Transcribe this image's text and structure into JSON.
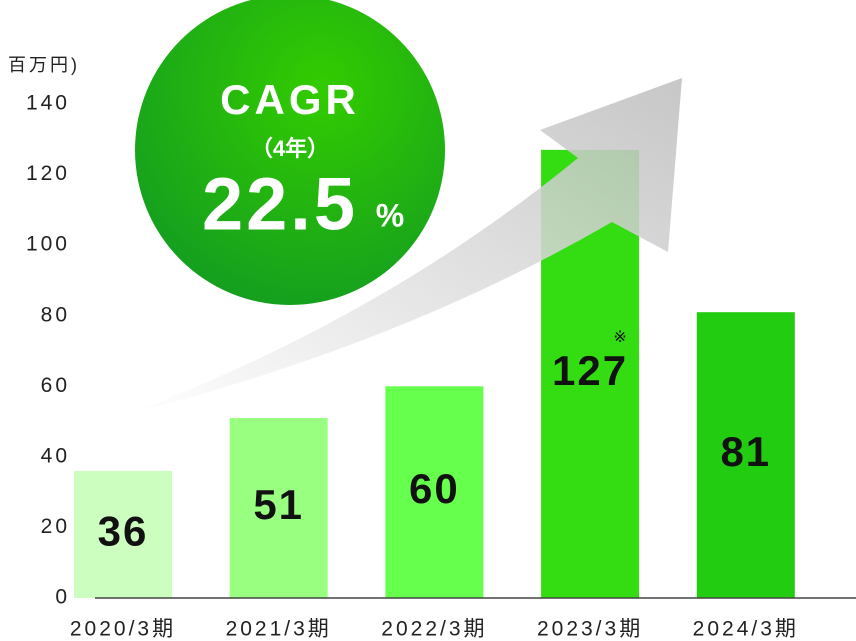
{
  "chart_data": {
    "type": "bar",
    "y_axis_label": "百万円)",
    "categories": [
      "2020/3期",
      "2021/3期",
      "2022/3期",
      "2023/3期",
      "2024/3期"
    ],
    "values": [
      36,
      51,
      60,
      127,
      81
    ],
    "colors": [
      "#ccffbf",
      "#99ff80",
      "#66ff4d",
      "#33dd11",
      "#22cc10"
    ],
    "ylim": [
      0,
      140
    ],
    "yticks": [
      0,
      20,
      40,
      60,
      80,
      100,
      120,
      140
    ],
    "annotations": {
      "bar_note": "※",
      "cagr_title": "CAGR",
      "cagr_period": "（4年）",
      "cagr_value": "22.5",
      "cagr_unit": "%"
    }
  }
}
